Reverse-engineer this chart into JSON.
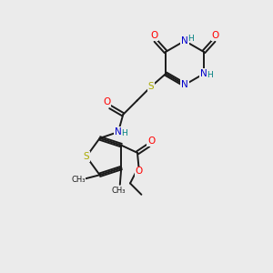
{
  "background_color": "#ebebeb",
  "fig_size": [
    3.0,
    3.0
  ],
  "dpi": 100,
  "atom_colors": {
    "O": "#ff0000",
    "N": "#0000cc",
    "S": "#aaaa00",
    "C": "#1a1a1a",
    "H": "#008080"
  },
  "bond_color": "#1a1a1a",
  "bond_width": 1.4,
  "font_size": 7.5
}
